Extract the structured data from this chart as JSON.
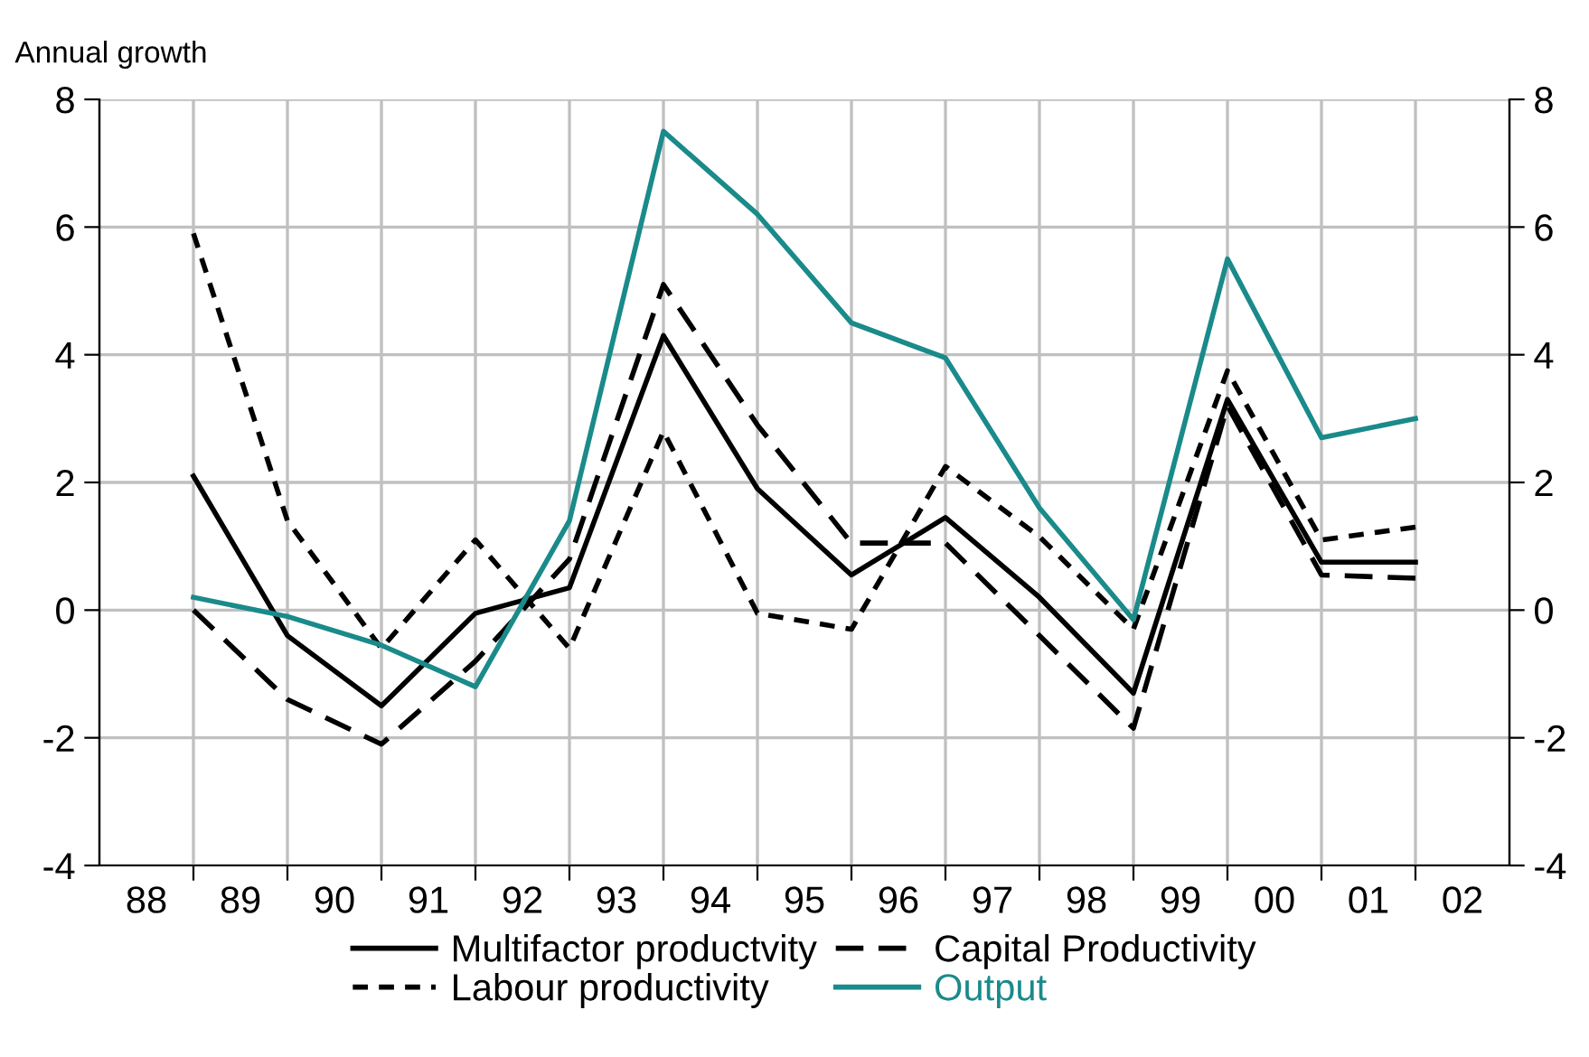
{
  "chart_data": {
    "type": "line",
    "ylabel": "Annual growth",
    "x": [
      1988.5,
      1989.5,
      1990.5,
      1991.5,
      1992.5,
      1993.5,
      1994.5,
      1995.5,
      1996.5,
      1997.5,
      1998.5,
      1999.5,
      2000.5,
      2001.5
    ],
    "xlim": [
      1987.5,
      2002.5
    ],
    "xticks": [
      {
        "value": 1988,
        "label": "88"
      },
      {
        "value": 1989,
        "label": "89"
      },
      {
        "value": 1990,
        "label": "90"
      },
      {
        "value": 1991,
        "label": "91"
      },
      {
        "value": 1992,
        "label": "92"
      },
      {
        "value": 1993,
        "label": "93"
      },
      {
        "value": 1994,
        "label": "94"
      },
      {
        "value": 1995,
        "label": "95"
      },
      {
        "value": 1996,
        "label": "96"
      },
      {
        "value": 1997,
        "label": "97"
      },
      {
        "value": 1998,
        "label": "98"
      },
      {
        "value": 1999,
        "label": "99"
      },
      {
        "value": 2000,
        "label": "00"
      },
      {
        "value": 2001,
        "label": "01"
      },
      {
        "value": 2002,
        "label": "02"
      },
      {
        "value": 1988.5,
        "label": null
      },
      {
        "value": 1989.5,
        "label": null
      },
      {
        "value": 1990.5,
        "label": null
      },
      {
        "value": 1991.5,
        "label": null
      },
      {
        "value": 1992.5,
        "label": null
      },
      {
        "value": 1993.5,
        "label": null
      },
      {
        "value": 1994.5,
        "label": null
      },
      {
        "value": 1995.5,
        "label": null
      },
      {
        "value": 1996.5,
        "label": null
      },
      {
        "value": 1997.5,
        "label": null
      },
      {
        "value": 1998.5,
        "label": null
      },
      {
        "value": 1999.5,
        "label": null
      },
      {
        "value": 2000.5,
        "label": null
      },
      {
        "value": 2001.5,
        "label": null
      }
    ],
    "ylim": [
      -4,
      8
    ],
    "yticks": [
      -4,
      -2,
      0,
      2,
      4,
      6,
      8
    ],
    "y2lim": [
      -4,
      8
    ],
    "y2ticks": [
      -4,
      -2,
      0,
      2,
      4,
      6,
      8
    ],
    "grid": true,
    "legend": "bottom",
    "marker": "none",
    "series": [
      {
        "name": "Multifactor productvity",
        "color": "#000000",
        "line_style": "solid",
        "values": [
          2.1,
          -0.4,
          -1.5,
          -0.05,
          0.35,
          4.3,
          1.9,
          0.55,
          1.45,
          0.2,
          -1.3,
          3.3,
          0.75,
          0.75
        ]
      },
      {
        "name": "Labour productivity",
        "color": "#000000",
        "line_style": "dotted",
        "values": [
          5.9,
          1.4,
          -0.6,
          1.1,
          -0.6,
          2.8,
          -0.05,
          -0.3,
          2.25,
          1.15,
          -0.3,
          3.75,
          1.1,
          1.3
        ]
      },
      {
        "name": "Capital Productivity",
        "color": "#000000",
        "line_style": "dashed",
        "values": [
          0.0,
          -1.4,
          -2.1,
          -0.8,
          0.8,
          5.1,
          2.9,
          1.05,
          1.05,
          -0.4,
          -1.85,
          3.2,
          0.55,
          0.5
        ]
      },
      {
        "name": "Output",
        "color": "#1a8a8a",
        "line_style": "solid",
        "values": [
          0.2,
          -0.1,
          -0.55,
          -1.2,
          1.4,
          7.5,
          6.2,
          4.5,
          3.95,
          1.6,
          -0.15,
          5.5,
          2.7,
          3.0
        ]
      }
    ]
  }
}
